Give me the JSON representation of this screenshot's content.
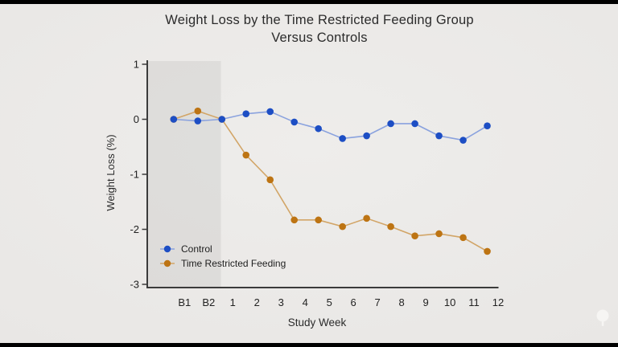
{
  "page": {
    "background_color": "#e9e7e5",
    "letterbox_color": "#000000"
  },
  "chart_data": {
    "type": "line",
    "title": "Weight Loss by the Time Restricted Feeding Group Versus Controls",
    "title_lines": [
      "Weight Loss by the Time Restricted Feeding Group",
      "Versus Controls"
    ],
    "xlabel": "Study Week",
    "ylabel": "Weight Loss (%)",
    "categories": [
      "B1",
      "B2",
      "1",
      "2",
      "3",
      "4",
      "5",
      "6",
      "7",
      "8",
      "9",
      "10",
      "11",
      "12"
    ],
    "series": [
      {
        "name": "Control",
        "color": "#1d4ec4",
        "line_color": "#8aa2de",
        "values": [
          0.0,
          -0.03,
          0.0,
          0.1,
          0.14,
          -0.05,
          -0.17,
          -0.35,
          -0.3,
          -0.08,
          -0.08,
          -0.3,
          -0.38,
          -0.12
        ]
      },
      {
        "name": "Time Restricted Feeding",
        "color": "#bd7413",
        "line_color": "#d2a567",
        "values": [
          0.0,
          0.15,
          0.0,
          -0.65,
          -1.1,
          -1.83,
          -1.83,
          -1.95,
          -1.8,
          -1.95,
          -2.12,
          -2.08,
          -2.15,
          -2.4
        ]
      }
    ],
    "ylim": [
      -3,
      1
    ],
    "yticks": [
      1,
      0,
      -1,
      -2,
      -3
    ],
    "grid": false,
    "legend_position": "lower-left",
    "baseline_region": {
      "covers": [
        "B1",
        "B2"
      ],
      "fill": "rgba(100,100,100,0.10)"
    },
    "axis_color": "#3b3b3b"
  },
  "logo": {
    "name": "tree-logo",
    "color": "#f8f7f5"
  }
}
